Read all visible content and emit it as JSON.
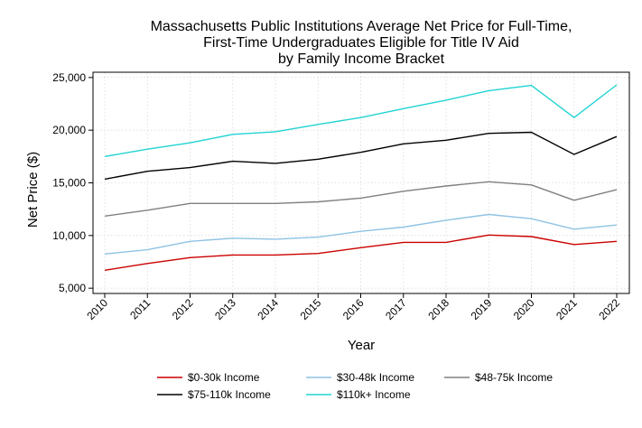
{
  "chart_data": {
    "type": "line",
    "title": [
      "Massachusetts Public Institutions Average Net Price for Full-Time,",
      "First-Time Undergraduates Eligible for Title IV Aid",
      "by Family Income Bracket"
    ],
    "xlabel": "Year",
    "ylabel": "Net Price ($)",
    "x": [
      "2010",
      "2011",
      "2012",
      "2013",
      "2014",
      "2015",
      "2016",
      "2017",
      "2018",
      "2019",
      "2020",
      "2021",
      "2022"
    ],
    "ylim": [
      4500,
      25500
    ],
    "yticks": [
      5000,
      10000,
      15000,
      20000,
      25000
    ],
    "ytick_labels": [
      "5,000",
      "10,000",
      "15,000",
      "20,000",
      "25,000"
    ],
    "grid": true,
    "legend_position": "bottom",
    "series": [
      {
        "name": "$0-30k Income",
        "color": "#cc0000",
        "values": [
          6700,
          7350,
          7900,
          8150,
          8150,
          8300,
          8850,
          9350,
          9350,
          10050,
          9900,
          9150,
          9450
        ]
      },
      {
        "name": "$30-48k Income",
        "color": "#8fc3e4",
        "values": [
          8250,
          8650,
          9450,
          9750,
          9650,
          9850,
          10400,
          10800,
          11450,
          12000,
          11600,
          10600,
          11000
        ]
      },
      {
        "name": "$48-75k Income",
        "color": "#808080",
        "values": [
          11850,
          12400,
          13050,
          13050,
          13050,
          13200,
          13550,
          14200,
          14700,
          15100,
          14800,
          13350,
          14350
        ]
      },
      {
        "name": "$75-110k Income",
        "color": "#000000",
        "values": [
          15350,
          16100,
          16450,
          17050,
          16850,
          17250,
          17900,
          18700,
          19050,
          19700,
          19800,
          17700,
          19400
        ]
      },
      {
        "name": "$110k+ Income",
        "color": "#22d3d3",
        "values": [
          17500,
          18200,
          18800,
          19600,
          19850,
          20550,
          21200,
          22050,
          22850,
          23750,
          24250,
          21200,
          24300
        ]
      }
    ]
  }
}
